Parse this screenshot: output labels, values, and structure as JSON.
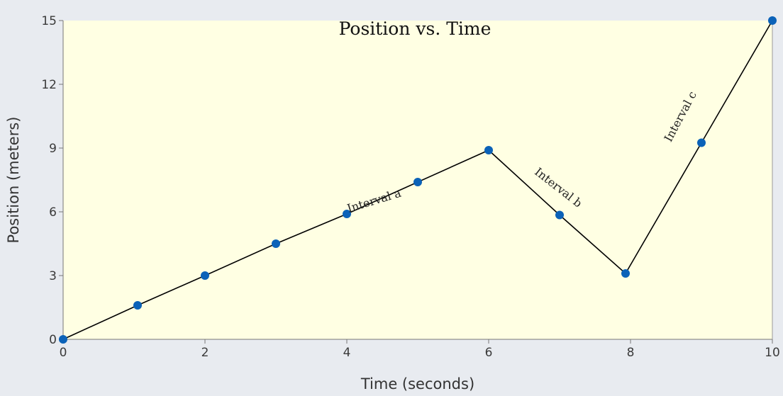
{
  "chart_data": {
    "type": "line",
    "title": "Position vs. Time",
    "xlabel": "Time (seconds)",
    "ylabel": "Position (meters)",
    "xlim": [
      0,
      10
    ],
    "ylim": [
      0,
      15
    ],
    "x_ticks": [
      "0",
      "2",
      "4",
      "6",
      "8",
      "10"
    ],
    "y_ticks": [
      "0",
      "3",
      "6",
      "9",
      "12",
      "15"
    ],
    "grid": false,
    "series": [
      {
        "x": [
          0,
          1.05,
          2,
          3,
          4,
          5,
          6,
          7,
          7.93,
          9,
          10
        ],
        "y": [
          0,
          1.6,
          3,
          4.5,
          5.9,
          7.4,
          8.9,
          5.85,
          3.1,
          9.25,
          15
        ],
        "marker_color": "#0b62b8",
        "line_color": "#000000"
      }
    ],
    "annotations": [
      {
        "text": "Interval a",
        "x": 4.4,
        "y": 6.35,
        "angle": -17
      },
      {
        "text": "Interval b",
        "x": 6.95,
        "y": 7.0,
        "angle": 38
      },
      {
        "text": "Interval c",
        "x": 8.75,
        "y": 10.4,
        "angle": -62
      }
    ],
    "colors": {
      "plot_background": "#ffffe3",
      "page_background": "#e8ebf0",
      "axis": "#777777"
    }
  }
}
